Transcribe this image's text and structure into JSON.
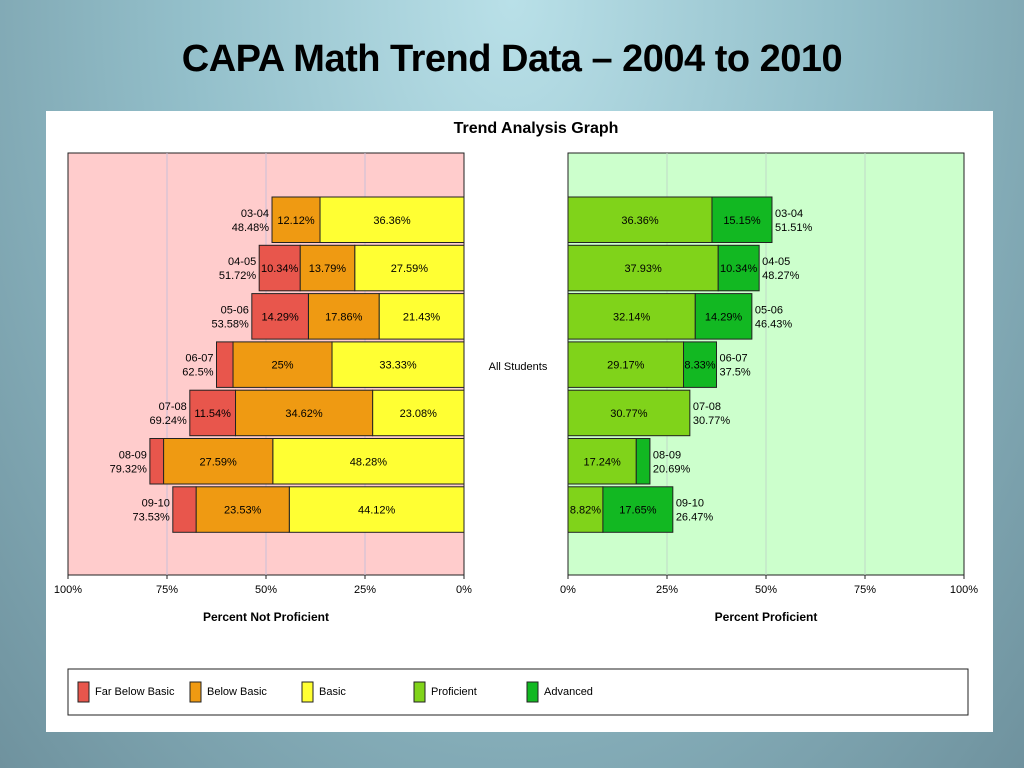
{
  "slide": {
    "title": "CAPA Math Trend Data – 2004 to 2010"
  },
  "chart_data": {
    "type": "bar",
    "title": "Trend Analysis Graph",
    "group_label": "All Students",
    "categories": [
      "03-04",
      "04-05",
      "05-06",
      "06-07",
      "07-08",
      "08-09",
      "09-10"
    ],
    "not_proficient_totals": [
      "48.48%",
      "51.72%",
      "53.58%",
      "62.5%",
      "69.24%",
      "79.32%",
      "73.53%"
    ],
    "proficient_totals": [
      "51.51%",
      "48.27%",
      "46.43%",
      "37.5%",
      "30.77%",
      "20.69%",
      "26.47%"
    ],
    "left_series": [
      {
        "name": "Far Below Basic",
        "color": "#e8564c",
        "values": [
          0,
          10.34,
          14.29,
          4.17,
          11.54,
          3.45,
          5.88
        ],
        "labels": [
          "",
          "10.34%",
          "14.29%",
          "",
          "11.54%",
          "",
          ""
        ]
      },
      {
        "name": "Below Basic",
        "color": "#ef9a12",
        "values": [
          12.12,
          13.79,
          17.86,
          25,
          34.62,
          27.59,
          23.53
        ],
        "labels": [
          "12.12%",
          "13.79%",
          "17.86%",
          "25%",
          "34.62%",
          "27.59%",
          "23.53%"
        ]
      },
      {
        "name": "Basic",
        "color": "#ffff33",
        "values": [
          36.36,
          27.59,
          21.43,
          33.33,
          23.08,
          48.28,
          44.12
        ],
        "labels": [
          "36.36%",
          "27.59%",
          "21.43%",
          "33.33%",
          "23.08%",
          "48.28%",
          "44.12%"
        ]
      }
    ],
    "right_series": [
      {
        "name": "Proficient",
        "color": "#80d31a",
        "values": [
          36.36,
          37.93,
          32.14,
          29.17,
          30.77,
          17.24,
          8.82
        ],
        "labels": [
          "36.36%",
          "37.93%",
          "32.14%",
          "29.17%",
          "30.77%",
          "17.24%",
          "8.82%"
        ]
      },
      {
        "name": "Advanced",
        "color": "#12b822",
        "values": [
          15.15,
          10.34,
          14.29,
          8.33,
          0,
          3.45,
          17.65
        ],
        "labels": [
          "15.15%",
          "10.34%",
          "14.29%",
          "8.33%",
          "",
          "",
          "17.65%"
        ]
      }
    ],
    "legend": [
      "Far Below Basic",
      "Below Basic",
      "Basic",
      "Proficient",
      "Advanced"
    ],
    "left_axis": {
      "label": "Percent Not Proficient",
      "ticks": [
        "100%",
        "75%",
        "50%",
        "25%",
        "0%"
      ],
      "range": [
        100,
        0
      ]
    },
    "right_axis": {
      "label": "Percent Proficient",
      "ticks": [
        "0%",
        "25%",
        "50%",
        "75%",
        "100%"
      ],
      "range": [
        0,
        100
      ]
    },
    "left_background": "#ffcccc",
    "right_background": "#ccffcc",
    "legend_position": "bottom",
    "grid": true
  }
}
